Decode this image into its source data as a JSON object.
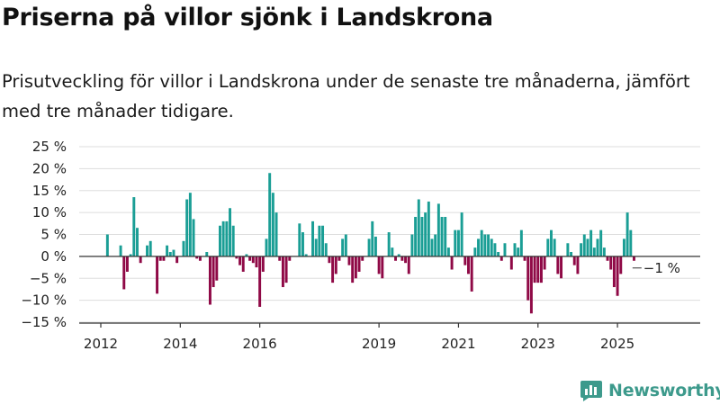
{
  "title": "Priserna på villor sjönk i Landskrona",
  "subtitle": "Prisutveckling för villor i Landskrona under de senaste tre månaderna, jämfört med tre månader tidigare.",
  "brand": {
    "name": "Newsworthy",
    "icon": "newsworthy-logo-icon"
  },
  "colors": {
    "positive": "#1a9e95",
    "negative": "#8f0946",
    "grid": "#dddddd",
    "axis": "#333333",
    "brand": "#3d9a8c"
  },
  "chart_data": {
    "type": "bar",
    "x_start": "2012-01",
    "x_end": "2025-12",
    "x_unit": "month",
    "ylim": [
      -15,
      25
    ],
    "yticks": [
      25,
      20,
      15,
      10,
      5,
      0,
      -5,
      -10,
      -15
    ],
    "ytick_labels": [
      "25 %",
      "20 %",
      "15 %",
      "10 %",
      "5 %",
      "0 %",
      "−5 %",
      "−10 %",
      "−15 %"
    ],
    "xticks": [
      "2012-01",
      "2014-01",
      "2016-01",
      "2019-01",
      "2021-01",
      "2023-01",
      "2025-01"
    ],
    "xtick_labels": [
      "2012",
      "2014",
      "2016",
      "2019",
      "2021",
      "2023",
      "2025"
    ],
    "grid": true,
    "annotation": {
      "x": "2025-05",
      "value": -1,
      "label": "−1 %"
    },
    "values": [
      null,
      null,
      5,
      null,
      null,
      null,
      2.5,
      -7.5,
      -3.5,
      0.5,
      13.5,
      6.5,
      -1.5,
      null,
      2.5,
      3.5,
      null,
      -8.5,
      -1,
      -1,
      2.5,
      1,
      1.5,
      -1.5,
      null,
      3.5,
      13,
      14.5,
      8.5,
      -0.5,
      -1,
      null,
      1,
      -11,
      -7,
      -5.5,
      7,
      8,
      8,
      11,
      7,
      -0.5,
      -2,
      -3.5,
      0.5,
      -1,
      -1.5,
      -2.5,
      -11.5,
      -3.5,
      4,
      19,
      14.5,
      10,
      -1,
      -7,
      -6,
      -1,
      null,
      null,
      7.5,
      5.5,
      0.5,
      null,
      8,
      4,
      7,
      7,
      3,
      -1.5,
      -6,
      -4,
      -1,
      4,
      5,
      -2,
      -6,
      -5,
      -3.5,
      -1,
      null,
      4,
      8,
      4.5,
      -4,
      -5,
      null,
      5.5,
      2,
      -1,
      0.5,
      -1,
      -1.5,
      -4,
      5,
      9,
      13,
      9,
      10,
      12.5,
      4,
      5,
      12,
      9,
      9,
      2,
      -3,
      6,
      6,
      10,
      -2,
      -4,
      -8,
      2,
      4,
      6,
      5,
      5,
      4,
      3,
      1,
      -1,
      3,
      null,
      -3,
      3,
      2,
      6,
      -1,
      -10,
      -13,
      -6,
      -6,
      -6,
      -3,
      4,
      6,
      4,
      -4,
      -5,
      null,
      3,
      1,
      -2,
      -4,
      3,
      5,
      4,
      6,
      2,
      4,
      6,
      2,
      -1,
      -3,
      -7,
      -9,
      -4,
      4,
      10,
      6,
      -1,
      null,
      null,
      null,
      null,
      null,
      null
    ]
  }
}
